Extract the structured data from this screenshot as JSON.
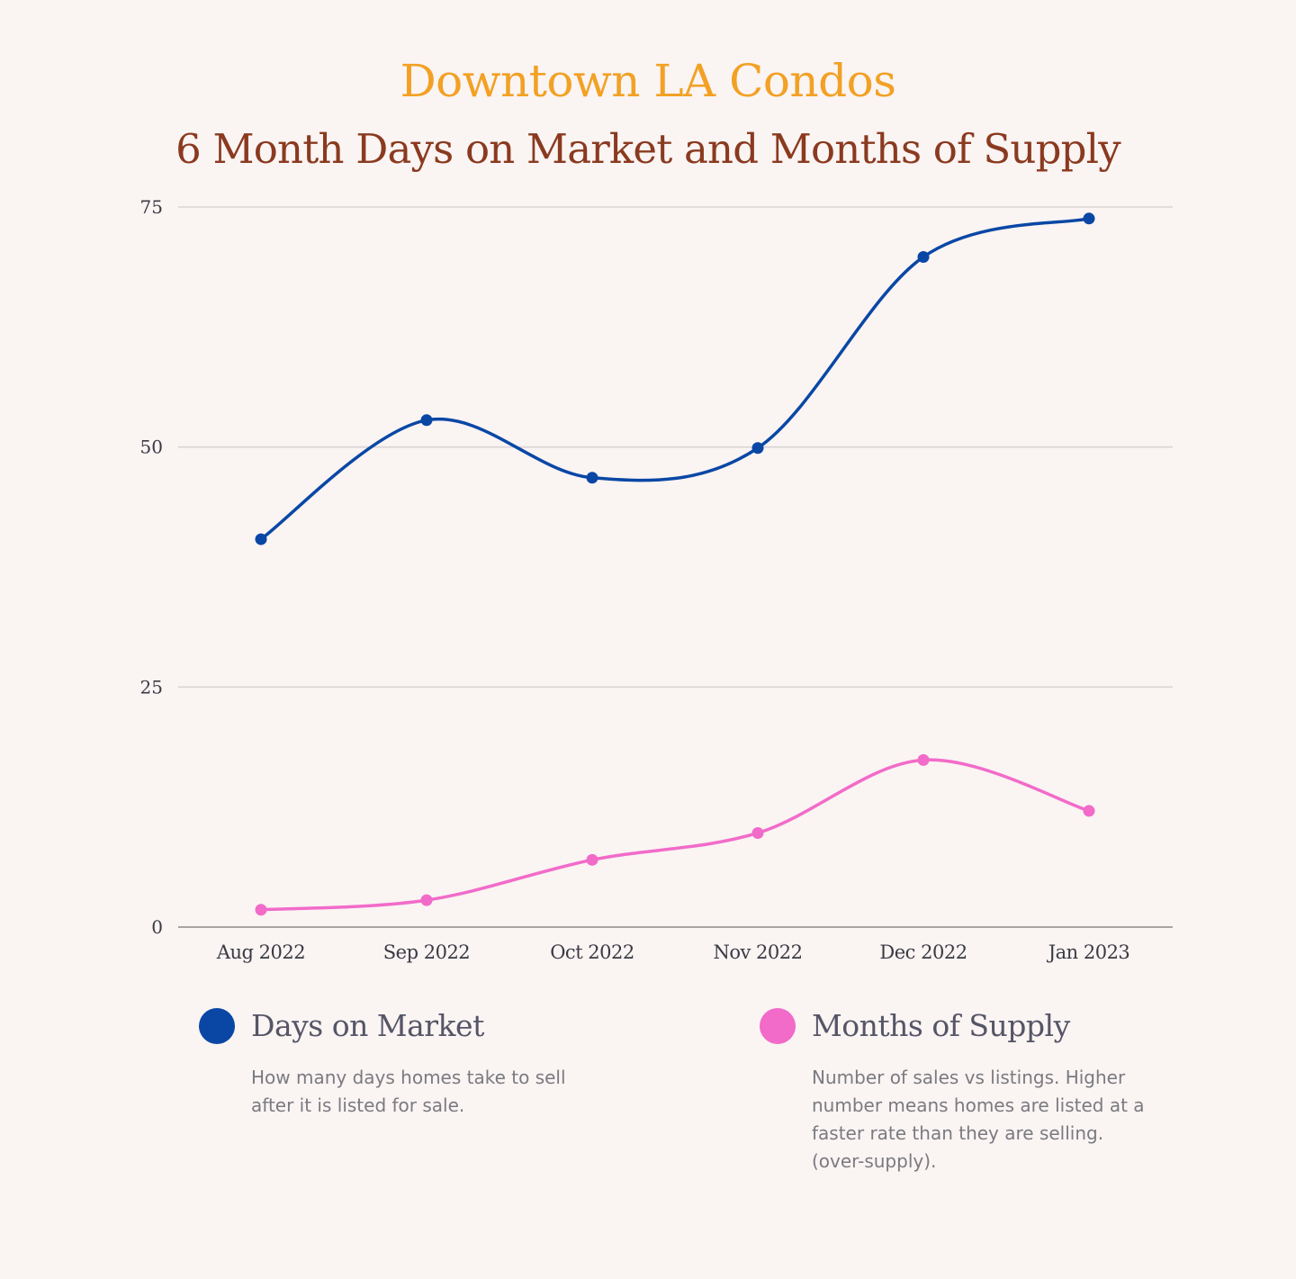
{
  "chart_data": {
    "type": "line",
    "title": "Downtown LA Condos",
    "subtitle": "6 Month Days on Market and Months of Supply",
    "categories": [
      "Aug 2022",
      "Sep 2022",
      "Oct 2022",
      "Nov 2022",
      "Dec 2022",
      "Jan 2023"
    ],
    "yticks": [
      0,
      25,
      50,
      75
    ],
    "ylim": [
      0,
      75
    ],
    "grid": true,
    "legend_position": "bottom",
    "series": [
      {
        "name": "Days on Market",
        "description": "How many days homes take to sell after it is listed for sale.",
        "color": "#0a47a5",
        "values": [
          40.4,
          52.8,
          46.8,
          49.9,
          69.8,
          73.8
        ]
      },
      {
        "name": "Months of Supply",
        "description": "Number of sales vs listings. Higher number means homes are listed at a faster rate than they are selling. (over-supply).",
        "color": "#f26bc9",
        "values": [
          1.8,
          2.8,
          7.0,
          9.8,
          17.4,
          12.1
        ]
      }
    ]
  }
}
